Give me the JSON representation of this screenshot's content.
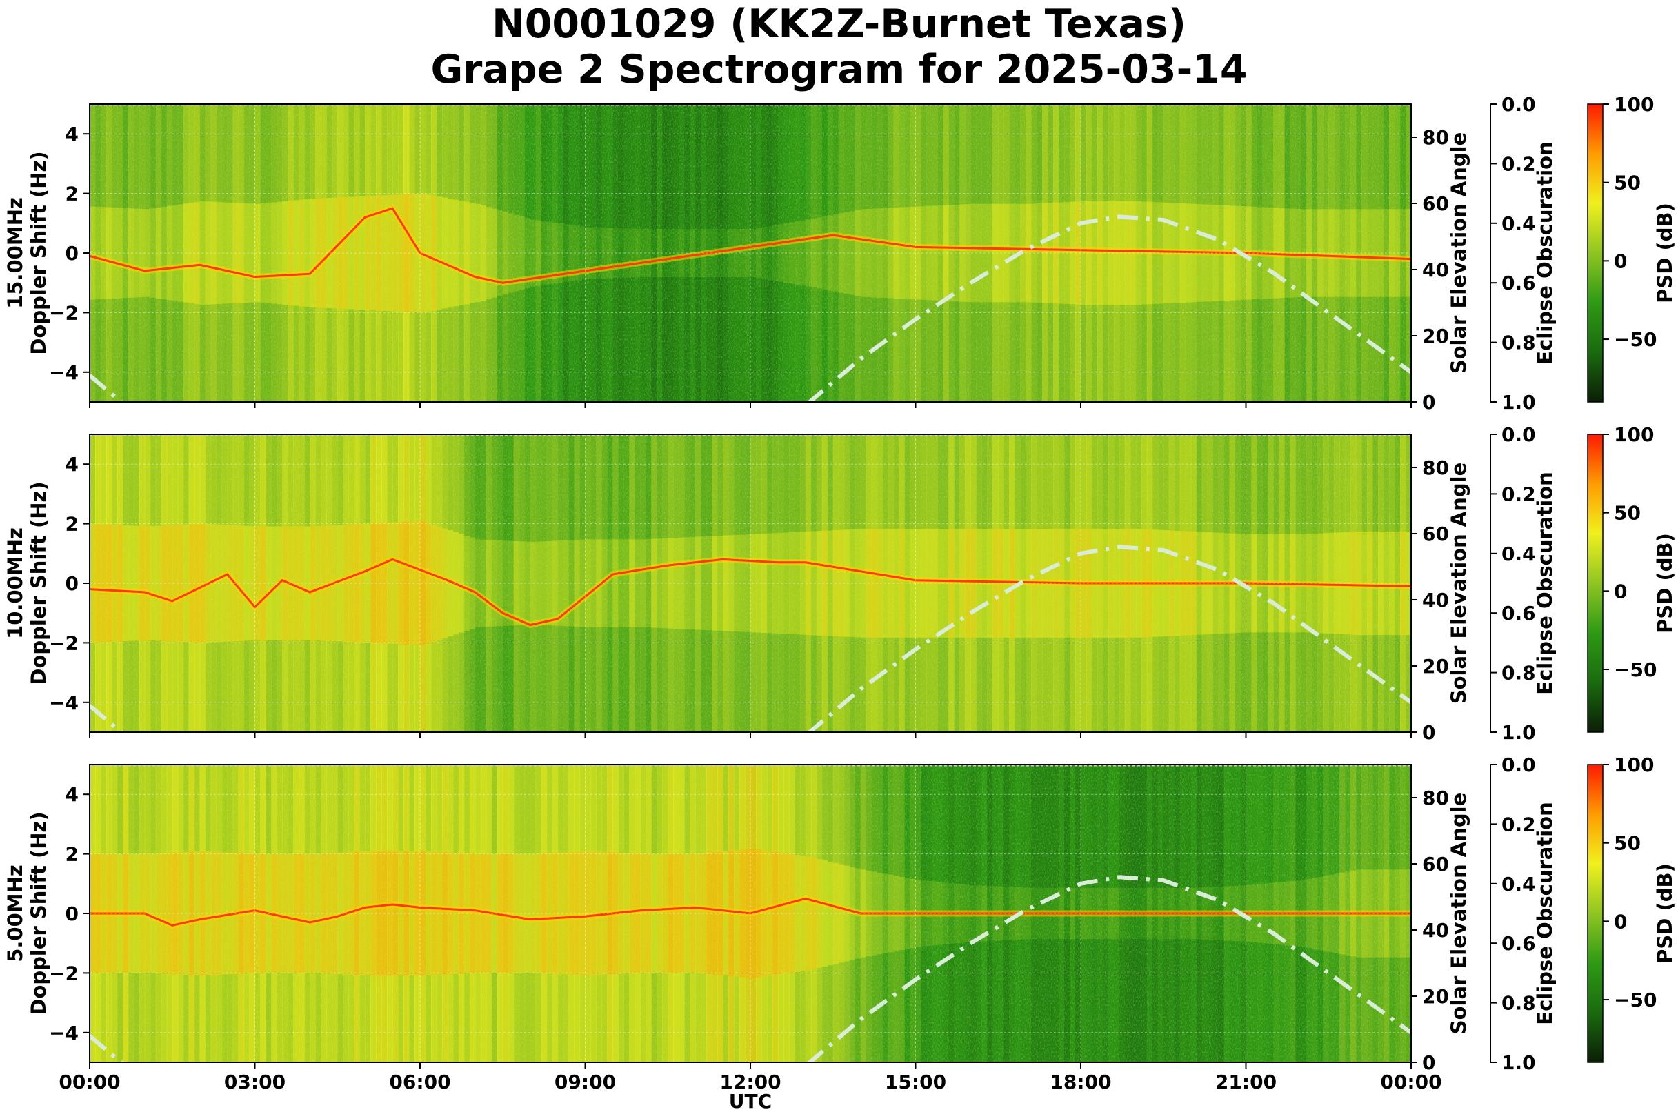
{
  "title": {
    "line1": "N0001029 (KK2Z-Burnet Texas)",
    "line2": "Grape 2 Spectrogram for 2025-03-14"
  },
  "colors": {
    "background": "#ffffff",
    "spectro_base": "#1e7d0f",
    "elevation_curve": "#d8ecd8",
    "colormap": [
      "#0b1e06",
      "#1a6b0e",
      "#2e9a14",
      "#8fc521",
      "#f0f01e",
      "#ff9c00",
      "#ff1a00"
    ]
  },
  "chart_data": [
    {
      "type": "heatmap",
      "frequency_label": "15.00MHz",
      "ylabel": "Doppler Shift (Hz)",
      "xlabel": "",
      "ylim": [
        -5,
        5
      ],
      "y_ticks": [
        -4,
        -2,
        0,
        2,
        4
      ],
      "x_ticks": [
        "00:00",
        "03:00",
        "06:00",
        "09:00",
        "12:00",
        "15:00",
        "18:00",
        "21:00",
        "00:00"
      ],
      "x_tick_labels_visible": false,
      "xlim_hours": [
        0,
        24
      ],
      "grid": true,
      "elevation_axis": {
        "label": "Solar Elevation Angle",
        "ylim": [
          0,
          90
        ],
        "ticks": [
          0,
          20,
          40,
          60,
          80
        ]
      },
      "eclipse_axis": {
        "label": "Eclipse Obscuration",
        "ylim": [
          1.0,
          0.0
        ],
        "ticks": [
          "0.0",
          "0.2",
          "0.4",
          "0.6",
          "0.8",
          "1.0"
        ]
      },
      "colorbar": {
        "label": "PSD (dB)",
        "range": [
          -90,
          100
        ],
        "ticks": [
          -50,
          0,
          50,
          100
        ],
        "tick_labels": [
          "−50",
          "0",
          "50",
          "100"
        ]
      },
      "solar_elevation": {
        "x_hours": [
          0,
          0.75,
          12.9,
          14,
          15,
          16,
          17,
          18,
          18.7,
          19.5,
          20.5,
          21.5,
          22.5,
          23.5,
          24
        ],
        "y_deg": [
          8,
          0,
          0,
          13,
          25,
          36,
          46,
          54,
          56,
          55,
          49,
          39,
          27,
          15,
          9
        ]
      },
      "carrier_trace": {
        "x_hours": [
          0,
          1,
          1.5,
          2,
          3,
          4,
          5,
          5.5,
          6,
          7,
          7.5,
          13.5,
          15,
          18,
          21,
          24
        ],
        "y_hz": [
          -0.1,
          -0.6,
          -0.5,
          -0.4,
          -0.8,
          -0.7,
          1.2,
          1.5,
          0.0,
          -0.8,
          -1.0,
          0.6,
          0.2,
          0.1,
          0.0,
          -0.2
        ]
      },
      "signal_activity": [
        0.55,
        0.5,
        0.65,
        0.6,
        0.7,
        0.75,
        0.8,
        0.6,
        0.3,
        0.15,
        0.12,
        0.12,
        0.12,
        0.3,
        0.5,
        0.55,
        0.6,
        0.6,
        0.65,
        0.65,
        0.6,
        0.55,
        0.5,
        0.5
      ]
    },
    {
      "type": "heatmap",
      "frequency_label": "10.00MHz",
      "ylabel": "Doppler Shift (Hz)",
      "xlabel": "",
      "ylim": [
        -5,
        5
      ],
      "y_ticks": [
        -4,
        -2,
        0,
        2,
        4
      ],
      "x_ticks": [
        "00:00",
        "03:00",
        "06:00",
        "09:00",
        "12:00",
        "15:00",
        "18:00",
        "21:00",
        "00:00"
      ],
      "x_tick_labels_visible": false,
      "xlim_hours": [
        0,
        24
      ],
      "grid": true,
      "elevation_axis": {
        "label": "Solar Elevation Angle",
        "ylim": [
          0,
          90
        ],
        "ticks": [
          0,
          20,
          40,
          60,
          80
        ]
      },
      "eclipse_axis": {
        "label": "Eclipse Obscuration",
        "ylim": [
          1.0,
          0.0
        ],
        "ticks": [
          "0.0",
          "0.2",
          "0.4",
          "0.6",
          "0.8",
          "1.0"
        ]
      },
      "colorbar": {
        "label": "PSD (dB)",
        "range": [
          -90,
          100
        ],
        "ticks": [
          -50,
          0,
          50,
          100
        ],
        "tick_labels": [
          "−50",
          "0",
          "50",
          "100"
        ]
      },
      "solar_elevation": {
        "x_hours": [
          0,
          0.75,
          12.9,
          14,
          15,
          16,
          17,
          18,
          18.7,
          19.5,
          20.5,
          21.5,
          22.5,
          23.5,
          24
        ],
        "y_deg": [
          8,
          0,
          0,
          13,
          25,
          36,
          46,
          54,
          56,
          55,
          49,
          39,
          27,
          15,
          9
        ]
      },
      "carrier_trace": {
        "x_hours": [
          0,
          1,
          1.5,
          2.5,
          3,
          3.5,
          4,
          5,
          5.5,
          6.5,
          7,
          7.5,
          8,
          8.5,
          9.5,
          10.5,
          11.5,
          12.5,
          13,
          15,
          18,
          21,
          24
        ],
        "y_hz": [
          -0.2,
          -0.3,
          -0.6,
          0.3,
          -0.8,
          0.1,
          -0.3,
          0.4,
          0.8,
          0.1,
          -0.3,
          -1.0,
          -1.4,
          -1.2,
          0.3,
          0.6,
          0.8,
          0.7,
          0.7,
          0.1,
          0.0,
          0.0,
          -0.1
        ]
      },
      "signal_activity": [
        0.8,
        0.75,
        0.8,
        0.75,
        0.75,
        0.8,
        0.85,
        0.5,
        0.45,
        0.5,
        0.5,
        0.55,
        0.6,
        0.65,
        0.7,
        0.7,
        0.7,
        0.7,
        0.7,
        0.7,
        0.65,
        0.6,
        0.6,
        0.65
      ]
    },
    {
      "type": "heatmap",
      "frequency_label": "5.00MHz",
      "ylabel": "Doppler Shift (Hz)",
      "xlabel": "UTC",
      "ylim": [
        -5,
        5
      ],
      "y_ticks": [
        -4,
        -2,
        0,
        2,
        4
      ],
      "x_ticks": [
        "00:00",
        "03:00",
        "06:00",
        "09:00",
        "12:00",
        "15:00",
        "18:00",
        "21:00",
        "00:00"
      ],
      "x_tick_labels_visible": true,
      "xlim_hours": [
        0,
        24
      ],
      "grid": true,
      "elevation_axis": {
        "label": "Solar Elevation Angle",
        "ylim": [
          0,
          90
        ],
        "ticks": [
          0,
          20,
          40,
          60,
          80
        ]
      },
      "eclipse_axis": {
        "label": "Eclipse Obscuration",
        "ylim": [
          1.0,
          0.0
        ],
        "ticks": [
          "0.0",
          "0.2",
          "0.4",
          "0.6",
          "0.8",
          "1.0"
        ]
      },
      "colorbar": {
        "label": "PSD (dB)",
        "range": [
          -90,
          100
        ],
        "ticks": [
          -50,
          0,
          50,
          100
        ],
        "tick_labels": [
          "−50",
          "0",
          "50",
          "100"
        ]
      },
      "solar_elevation": {
        "x_hours": [
          0,
          0.75,
          12.9,
          14,
          15,
          16,
          17,
          18,
          18.7,
          19.5,
          20.5,
          21.5,
          22.5,
          23.5,
          24
        ],
        "y_deg": [
          8,
          0,
          0,
          13,
          25,
          36,
          46,
          54,
          56,
          55,
          49,
          39,
          27,
          15,
          9
        ]
      },
      "carrier_trace": {
        "x_hours": [
          0,
          1,
          1.5,
          2,
          3,
          4,
          4.5,
          5,
          5.5,
          6,
          7,
          8,
          9,
          10,
          11,
          12,
          13,
          14,
          24
        ],
        "y_hz": [
          0.0,
          0.0,
          -0.4,
          -0.2,
          0.1,
          -0.3,
          -0.1,
          0.2,
          0.3,
          0.2,
          0.1,
          -0.2,
          -0.1,
          0.1,
          0.2,
          0.0,
          0.5,
          0.0,
          0.0
        ]
      },
      "signal_activity": [
        0.8,
        0.8,
        0.85,
        0.8,
        0.8,
        0.85,
        0.85,
        0.8,
        0.8,
        0.85,
        0.8,
        0.8,
        0.9,
        0.75,
        0.5,
        0.3,
        0.2,
        0.15,
        0.15,
        0.15,
        0.15,
        0.2,
        0.3,
        0.5
      ]
    }
  ]
}
